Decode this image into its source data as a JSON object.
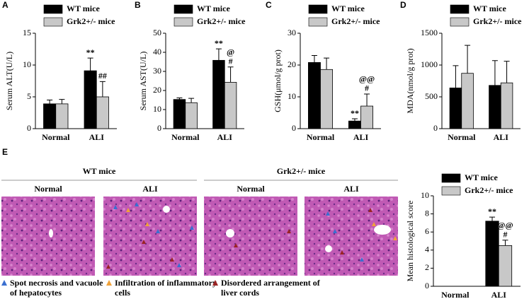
{
  "chart_data": [
    {
      "type": "bar",
      "panel": "A",
      "ylabel": "Serum ALT(U/L)",
      "categories": [
        "Normal",
        "ALI"
      ],
      "ylim": [
        0,
        15
      ],
      "yticks": [
        0,
        5,
        10,
        15
      ],
      "series": [
        {
          "name": "WT mice",
          "color": "#000000",
          "values": [
            3.9,
            9.1
          ],
          "errors": [
            0.6,
            2.0
          ],
          "significance": [
            null,
            "**"
          ]
        },
        {
          "name": "Grk2+/- mice",
          "color": "#c8c8c8",
          "values": [
            3.9,
            5.0
          ],
          "errors": [
            0.7,
            2.4
          ],
          "significance": [
            null,
            "##"
          ]
        }
      ]
    },
    {
      "type": "bar",
      "panel": "B",
      "ylabel": "Serum AST(U/L)",
      "categories": [
        "Normal",
        "ALI"
      ],
      "ylim": [
        0,
        50
      ],
      "yticks": [
        0,
        10,
        20,
        30,
        40,
        50
      ],
      "series": [
        {
          "name": "WT mice",
          "color": "#000000",
          "values": [
            15.3,
            35.8
          ],
          "errors": [
            0.8,
            6.0
          ],
          "significance": [
            null,
            "**"
          ]
        },
        {
          "name": "Grk2+/- mice",
          "color": "#c8c8c8",
          "values": [
            13.6,
            24.3
          ],
          "errors": [
            2.3,
            8.0
          ],
          "significance": [
            null,
            [
              "@",
              "#"
            ]
          ]
        }
      ]
    },
    {
      "type": "bar",
      "panel": "C",
      "ylabel": "GSH(μmol/g prot)",
      "categories": [
        "Normal",
        "ALI"
      ],
      "ylim": [
        0,
        30
      ],
      "yticks": [
        0,
        10,
        20,
        30
      ],
      "series": [
        {
          "name": "WT mice",
          "color": "#000000",
          "values": [
            20.8,
            2.4
          ],
          "errors": [
            2.2,
            0.7
          ],
          "significance": [
            null,
            "**"
          ]
        },
        {
          "name": "Grk2+/- mice",
          "color": "#c8c8c8",
          "values": [
            18.6,
            7.1
          ],
          "errors": [
            3.6,
            3.8
          ],
          "significance": [
            null,
            [
              "@@",
              "#"
            ]
          ]
        }
      ]
    },
    {
      "type": "bar",
      "panel": "D",
      "ylabel": "MDA(nmol/g prot)",
      "categories": [
        "Normal",
        "ALI"
      ],
      "ylim": [
        0,
        1500
      ],
      "yticks": [
        0,
        500,
        1000,
        1500
      ],
      "series": [
        {
          "name": "WT mice",
          "color": "#000000",
          "values": [
            640,
            680
          ],
          "errors": [
            350,
            390
          ]
        },
        {
          "name": "Grk2+/- mice",
          "color": "#c8c8c8",
          "values": [
            870,
            720
          ],
          "errors": [
            440,
            340
          ]
        }
      ]
    },
    {
      "type": "bar",
      "panel": "E",
      "ylabel": "Mean histological score",
      "categories": [
        "Normal",
        "ALI"
      ],
      "ylim": [
        0,
        10
      ],
      "yticks": [
        0,
        2,
        4,
        6,
        8,
        10
      ],
      "series": [
        {
          "name": "WT mice",
          "color": "#000000",
          "values": [
            0,
            7.2
          ],
          "errors": [
            0,
            0.45
          ],
          "significance": [
            null,
            "**"
          ]
        },
        {
          "name": "Grk2+/- mice",
          "color": "#c8c8c8",
          "values": [
            0,
            4.5
          ],
          "errors": [
            0,
            0.6
          ],
          "significance": [
            null,
            [
              "@@",
              "#"
            ]
          ]
        }
      ]
    }
  ],
  "histology": {
    "groups": [
      "WT mice",
      "Grk2+/- mice"
    ],
    "columns": [
      "Normal",
      "ALI",
      "Normal",
      "ALI"
    ],
    "legend": [
      {
        "lines": [
          "Spot necrosis and vacuole",
          "of hepatocytes"
        ],
        "color": "#3a6fd0"
      },
      {
        "lines": [
          "Infiltration of inflammatory",
          "cells"
        ],
        "color": "#f0a23a"
      },
      {
        "lines": [
          "Disordered arrangement of",
          "liver cords"
        ],
        "color": "#9a2424"
      }
    ]
  }
}
